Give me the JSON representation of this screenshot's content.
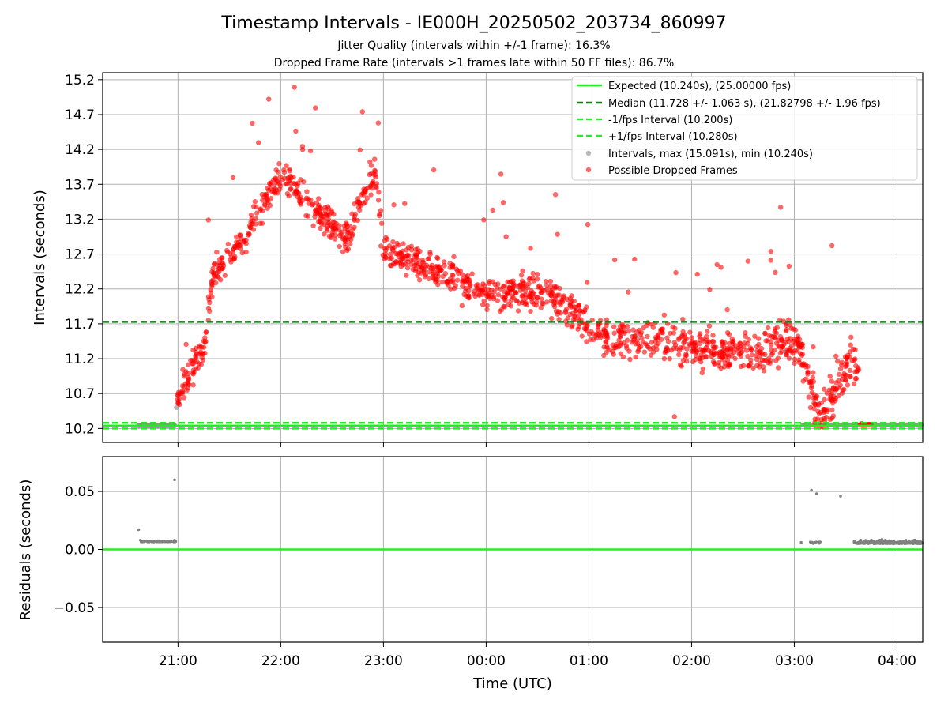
{
  "title": "Timestamp Intervals - IE000H_20250502_203734_860997",
  "subtitle_1": "Jitter Quality (intervals within +/-1 frame): 16.3%",
  "subtitle_2": "Dropped Frame Rate (intervals >1 frames late within 50 FF files): 86.7%",
  "colors": {
    "expected": "#22ee22",
    "median": "#117a11",
    "interval_band": "#22ee22",
    "intervals": "#808080",
    "dropped": "#ff0000",
    "grid": "#b0b0b0"
  },
  "chart_data": [
    {
      "type": "scatter",
      "panel": "intervals",
      "ylabel": "Intervals (seconds)",
      "xlabel": "",
      "x_ticks": [
        "21:00",
        "22:00",
        "23:00",
        "00:00",
        "01:00",
        "02:00",
        "03:00",
        "04:00"
      ],
      "y_ticks": [
        "10.2",
        "10.7",
        "11.2",
        "11.7",
        "12.2",
        "12.7",
        "13.2",
        "13.7",
        "14.2",
        "14.7",
        "15.2"
      ],
      "x_range": [
        "20:16",
        "04:15"
      ],
      "y_range": [
        10.0,
        15.3
      ],
      "grid": true,
      "legend_position": "upper-right",
      "legend": [
        {
          "label": "Expected (10.240s), (25.00000 fps)",
          "style": "solid-line",
          "color": "#22ee22"
        },
        {
          "label": "Median (11.728 +/- 1.063 s), (21.82798 +/- 1.96 fps)",
          "style": "dashed-line",
          "color": "#117a11"
        },
        {
          "label": "-1/fps Interval (10.200s)",
          "style": "dashed-line",
          "color": "#22ee22"
        },
        {
          "label": "+1/fps Interval (10.280s)",
          "style": "dashed-line",
          "color": "#22ee22"
        },
        {
          "label": "Intervals, max (15.091s), min (10.240s)",
          "style": "marker",
          "color": "#808080"
        },
        {
          "label": "Possible Dropped Frames",
          "style": "marker",
          "color": "#ff0000"
        }
      ],
      "reference_lines": [
        {
          "name": "Expected",
          "y": 10.24
        },
        {
          "name": "Median",
          "y": 11.728
        },
        {
          "name": "-1/fps Interval",
          "y": 10.2
        },
        {
          "name": "+1/fps Interval",
          "y": 10.28
        }
      ],
      "series": [
        {
          "name": "Intervals",
          "points": [
            [
              "20:37",
              10.24
            ],
            [
              "20:45",
              10.24
            ],
            [
              "20:52",
              10.24
            ],
            [
              "20:58",
              10.24
            ],
            [
              "20:59",
              10.5
            ],
            [
              "03:05",
              10.25
            ],
            [
              "03:15",
              10.24
            ],
            [
              "03:30",
              10.25
            ],
            [
              "03:45",
              10.25
            ],
            [
              "04:00",
              10.25
            ],
            [
              "04:14",
              10.25
            ]
          ]
        },
        {
          "name": "Possible Dropped Frames",
          "trend": [
            [
              "20:59",
              10.6
            ],
            [
              "21:05",
              10.9
            ],
            [
              "21:10",
              11.1
            ],
            [
              "21:15",
              11.3
            ],
            [
              "21:20",
              12.3
            ],
            [
              "21:30",
              12.7
            ],
            [
              "21:40",
              13.0
            ],
            [
              "21:50",
              13.4
            ],
            [
              "22:00",
              13.8
            ],
            [
              "22:10",
              13.6
            ],
            [
              "22:20",
              13.3
            ],
            [
              "22:30",
              13.1
            ],
            [
              "22:40",
              12.9
            ],
            [
              "22:45",
              13.4
            ],
            [
              "22:55",
              13.9
            ],
            [
              "23:00",
              12.75
            ],
            [
              "23:20",
              12.55
            ],
            [
              "23:40",
              12.4
            ],
            [
              "00:00",
              12.1
            ],
            [
              "00:20",
              12.15
            ],
            [
              "00:40",
              12.1
            ],
            [
              "01:00",
              11.65
            ],
            [
              "01:20",
              11.5
            ],
            [
              "01:40",
              11.45
            ],
            [
              "02:00",
              11.35
            ],
            [
              "02:20",
              11.35
            ],
            [
              "02:40",
              11.3
            ],
            [
              "02:55",
              11.5
            ],
            [
              "03:05",
              11.3
            ],
            [
              "03:15",
              10.3
            ],
            [
              "03:25",
              10.9
            ],
            [
              "03:35",
              11.2
            ],
            [
              "03:45",
              10.25
            ]
          ],
          "notable_points": [
            [
              "21:53",
              14.92
            ],
            [
              "22:08",
              15.09
            ],
            [
              "22:57",
              14.58
            ],
            [
              "02:52",
              13.37
            ],
            [
              "01:50",
              10.37
            ],
            [
              "03:22",
              12.82
            ]
          ]
        }
      ]
    },
    {
      "type": "scatter",
      "panel": "residuals",
      "ylabel": "Residuals (seconds)",
      "xlabel": "Time (UTC)",
      "x_ticks": [
        "21:00",
        "22:00",
        "23:00",
        "00:00",
        "01:00",
        "02:00",
        "03:00",
        "04:00"
      ],
      "y_ticks": [
        "−0.05",
        "0.00",
        "0.05"
      ],
      "x_range": [
        "20:16",
        "04:15"
      ],
      "y_range": [
        -0.08,
        0.08
      ],
      "grid": true,
      "reference_lines": [
        {
          "name": "Expected",
          "y": 0.0
        }
      ],
      "series": [
        {
          "name": "Residuals",
          "points": [
            [
              "20:37",
              0.017
            ],
            [
              "20:38",
              0.008
            ],
            [
              "20:45",
              0.007
            ],
            [
              "20:52",
              0.007
            ],
            [
              "20:58",
              0.008
            ],
            [
              "20:58",
              0.06
            ],
            [
              "03:04",
              0.006
            ],
            [
              "03:10",
              0.051
            ],
            [
              "03:13",
              0.048
            ],
            [
              "03:27",
              0.046
            ],
            [
              "03:35",
              0.007
            ],
            [
              "03:50",
              0.008
            ],
            [
              "04:10",
              0.008
            ]
          ]
        }
      ]
    }
  ]
}
